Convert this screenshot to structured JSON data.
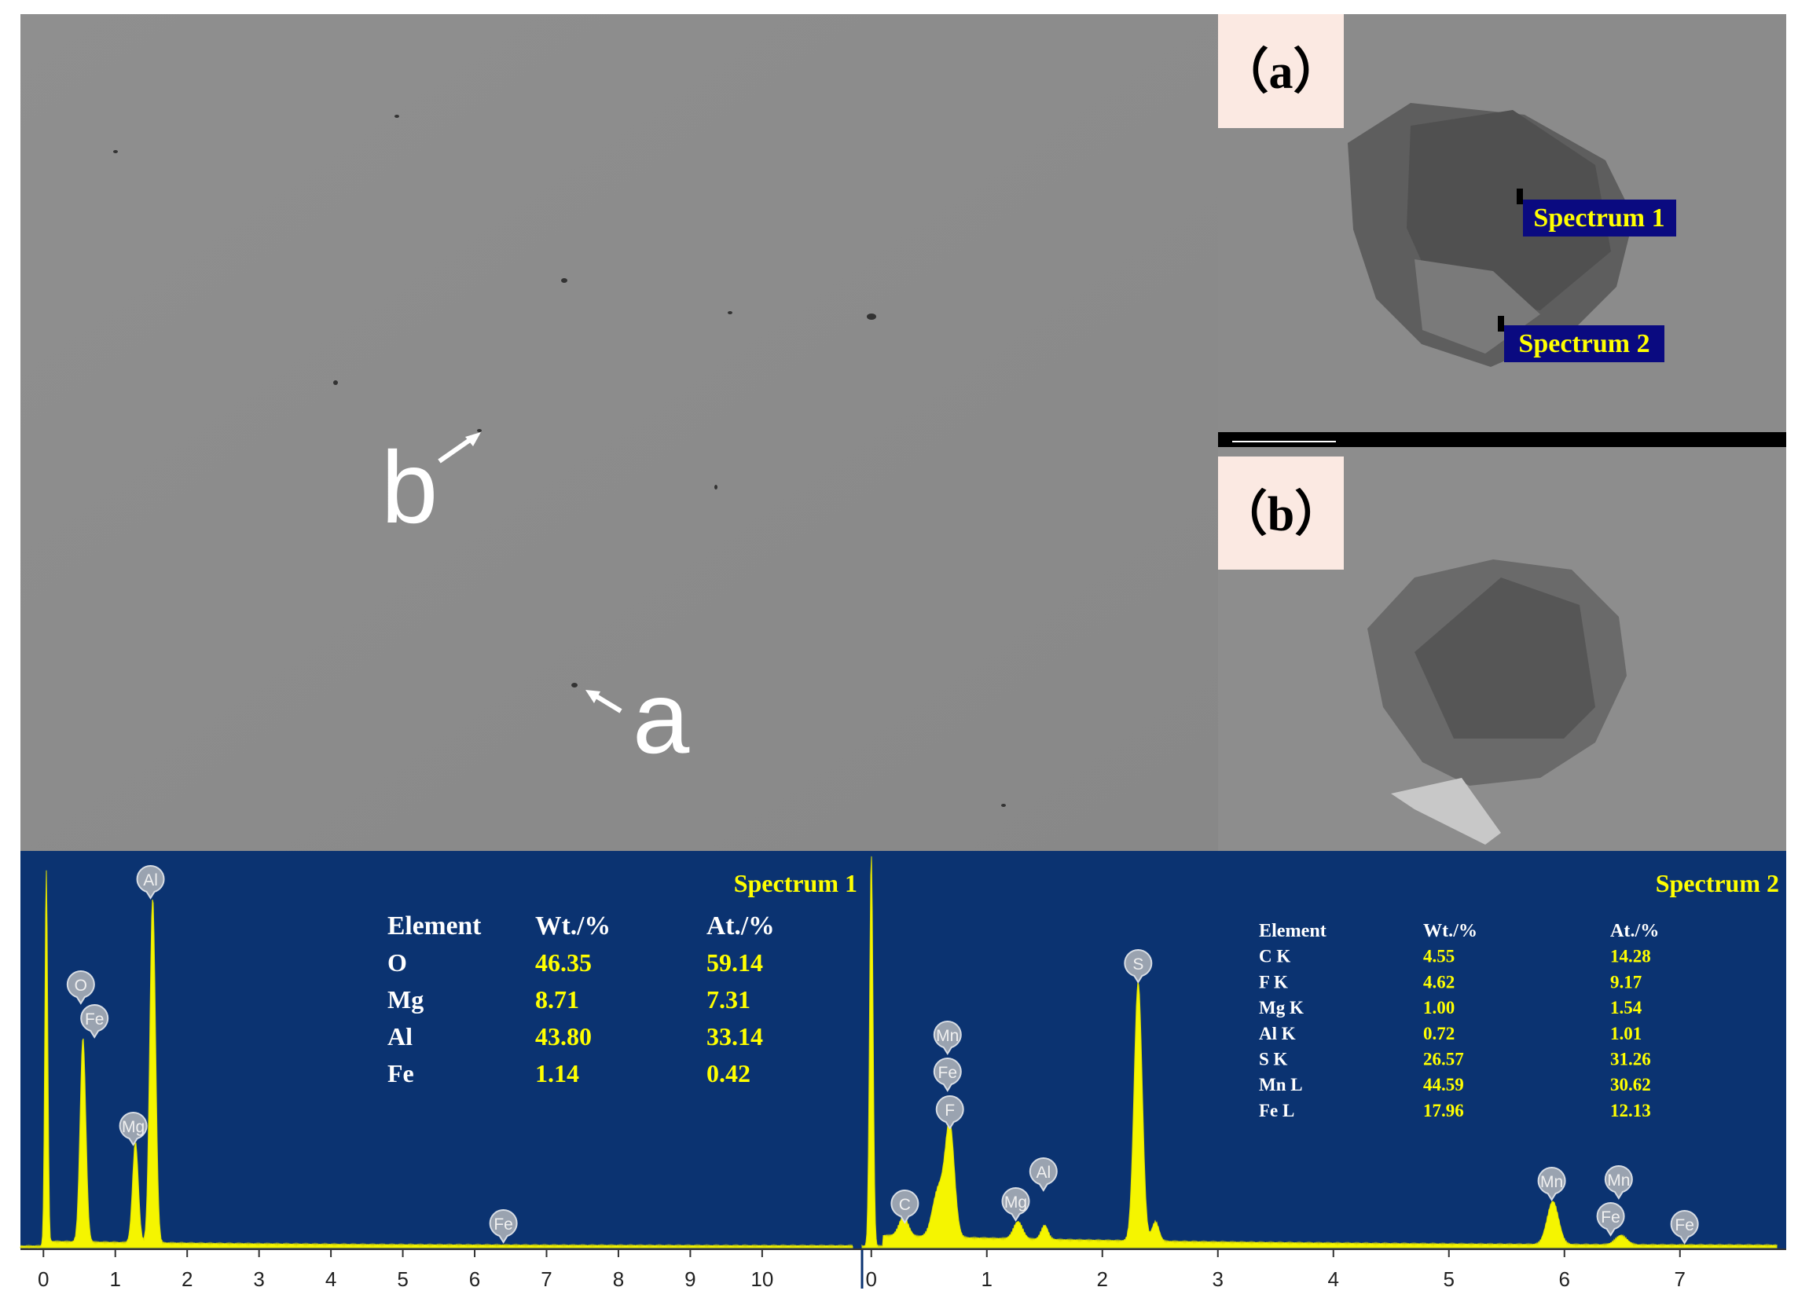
{
  "sem": {
    "main_labels": [
      "b",
      "a"
    ],
    "insets": [
      {
        "label": "（a）",
        "spectrum_labels": [
          "Spectrum 1",
          "Spectrum 2"
        ]
      },
      {
        "label": "（b）"
      }
    ]
  },
  "spectra": [
    {
      "title": "Spectrum 1",
      "xlim": [
        -0.32,
        11.39
      ],
      "xticks": [
        0,
        1,
        2,
        3,
        4,
        5,
        6,
        7,
        8,
        9,
        10
      ],
      "table": {
        "header": [
          "Element",
          "Wt./%",
          "At./%"
        ],
        "rows": [
          [
            "O",
            "46.35",
            "59.14"
          ],
          [
            "Mg",
            "8.71",
            "7.31"
          ],
          [
            "Al",
            "43.80",
            "33.14"
          ],
          [
            "Fe",
            "1.14",
            "0.42"
          ]
        ]
      },
      "peaks": [
        {
          "label": "Al",
          "x": 1.49
        },
        {
          "label": "O",
          "x": 0.52
        },
        {
          "label": "Fe",
          "x": 0.71
        },
        {
          "label": "Mg",
          "x": 1.25
        },
        {
          "label": "Fe",
          "x": 6.4
        }
      ]
    },
    {
      "title": "Spectrum 2",
      "xlim": [
        -0.08,
        7.92
      ],
      "xticks": [
        0,
        1,
        2,
        3,
        4,
        5,
        6,
        7
      ],
      "table": {
        "header": [
          "Element",
          "Wt./%",
          "At./%"
        ],
        "rows": [
          [
            "C K",
            "4.55",
            "14.28"
          ],
          [
            "F K",
            "4.62",
            "9.17"
          ],
          [
            "Mg K",
            "1.00",
            "1.54"
          ],
          [
            "Al K",
            "0.72",
            "1.01"
          ],
          [
            "S K",
            "26.57",
            "31.26"
          ],
          [
            "Mn L",
            "44.59",
            "30.62"
          ],
          [
            "Fe L",
            "17.96",
            "12.13"
          ]
        ]
      },
      "peaks": [
        {
          "label": "C",
          "x": 0.29
        },
        {
          "label": "Mn",
          "x": 0.66
        },
        {
          "label": "Fe",
          "x": 0.66
        },
        {
          "label": "F",
          "x": 0.68
        },
        {
          "label": "Mg",
          "x": 1.25
        },
        {
          "label": "Al",
          "x": 1.49
        },
        {
          "label": "S",
          "x": 2.31
        },
        {
          "label": "Mn",
          "x": 5.89
        },
        {
          "label": "Fe",
          "x": 6.4
        },
        {
          "label": "Mn",
          "x": 6.47
        },
        {
          "label": "Fe",
          "x": 7.04
        }
      ]
    }
  ]
}
